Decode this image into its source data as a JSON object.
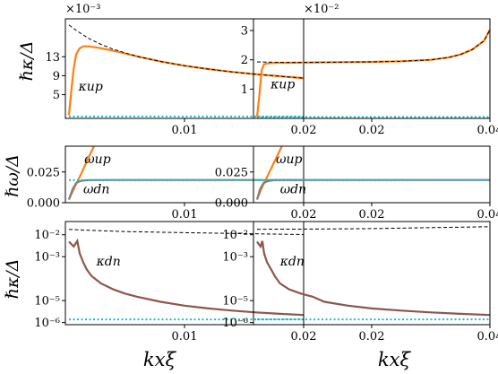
{
  "colors": {
    "orange": "#ff7f0e",
    "brown": "#8c564b",
    "gray": "#7f7f7f",
    "cyan": "#17becf",
    "dash": "#000000"
  },
  "chart_data": [
    {
      "panel": "top-left",
      "type": "line",
      "xlim": [
        0,
        0.02
      ],
      "xticks": [
        "0.01",
        "0.02"
      ],
      "ylim": [
        0,
        0.021
      ],
      "yticks": [
        "5",
        "9",
        "13"
      ],
      "exponent": "×10⁻³",
      "ylabel": "ℏκ/Δ",
      "annotations": [
        "κup"
      ],
      "series": [
        {
          "name": "κup",
          "color": "orange",
          "x": [
            0.0003,
            0.0005,
            0.0007,
            0.0009,
            0.0012,
            0.0015,
            0.002,
            0.0025,
            0.003,
            0.004,
            0.005,
            0.006,
            0.008,
            0.01,
            0.012,
            0.014,
            0.016,
            0.018,
            0.02
          ],
          "y": [
            0.0007,
            0.006,
            0.0105,
            0.0135,
            0.0148,
            0.0152,
            0.0152,
            0.015,
            0.0148,
            0.0143,
            0.0137,
            0.0131,
            0.012,
            0.0111,
            0.0104,
            0.0098,
            0.0093,
            0.0089,
            0.0085
          ]
        },
        {
          "style": "dashed",
          "color": "dash",
          "x": [
            0.0003,
            0.001,
            0.002,
            0.003,
            0.004,
            0.006,
            0.008,
            0.01,
            0.012,
            0.014,
            0.016,
            0.018,
            0.02
          ],
          "y": [
            0.0197,
            0.0184,
            0.0168,
            0.0156,
            0.0146,
            0.0131,
            0.012,
            0.0111,
            0.0104,
            0.0098,
            0.0093,
            0.0089,
            0.0085
          ]
        },
        {
          "style": "dotted",
          "color": "cyan",
          "x": [
            0.0003,
            0.02
          ],
          "y": [
            0.0004,
            0.0004
          ]
        }
      ]
    },
    {
      "panel": "top-right",
      "type": "line",
      "xlim": [
        0,
        0.04
      ],
      "xticks": [
        "0.02",
        "0.04"
      ],
      "ylim": [
        0,
        0.034
      ],
      "yticks": [
        "1",
        "2",
        "3"
      ],
      "exponent": "×10⁻²",
      "annotations": [
        "κup"
      ],
      "series": [
        {
          "name": "κup",
          "color": "orange",
          "x": [
            0.0006,
            0.001,
            0.0014,
            0.0018,
            0.0025,
            0.003,
            0.004,
            0.006,
            0.01,
            0.015,
            0.02,
            0.025,
            0.03,
            0.033,
            0.035,
            0.037,
            0.039,
            0.04
          ],
          "y": [
            0.0005,
            0.008,
            0.0165,
            0.0185,
            0.0188,
            0.0189,
            0.019,
            0.019,
            0.0191,
            0.0192,
            0.0193,
            0.0195,
            0.02,
            0.0208,
            0.0218,
            0.0235,
            0.0265,
            0.0303
          ]
        },
        {
          "style": "dashed",
          "color": "dash",
          "x": [
            0.0006,
            0.005,
            0.01,
            0.015,
            0.02,
            0.025,
            0.03,
            0.033,
            0.035,
            0.037,
            0.039,
            0.04
          ],
          "y": [
            0.0193,
            0.0191,
            0.0191,
            0.0192,
            0.0193,
            0.0195,
            0.02,
            0.0208,
            0.0218,
            0.0235,
            0.0265,
            0.0303
          ]
        },
        {
          "style": "dotted",
          "color": "cyan",
          "x": [
            0.0006,
            0.04
          ],
          "y": [
            0.0005,
            0.0005
          ]
        }
      ]
    },
    {
      "panel": "mid-left",
      "type": "line",
      "xlim": [
        0,
        0.02
      ],
      "xticks": [
        "0.01",
        "0.02"
      ],
      "ylim": [
        0,
        0.046
      ],
      "yticks": [
        "0.000",
        "0.025"
      ],
      "ylabel": "ℏω/Δ",
      "annotations": [
        "ωup",
        "ωdn"
      ],
      "series": [
        {
          "name": "ωup",
          "color": "orange",
          "x": [
            0.0003,
            0.0008,
            0.0014,
            0.0019,
            0.0024
          ],
          "y": [
            0.0028,
            0.013,
            0.025,
            0.036,
            0.046
          ]
        },
        {
          "name": "ωdn",
          "color": "gray",
          "x": [
            0.0003,
            0.0006,
            0.0009,
            0.0012,
            0.0016,
            0.002,
            0.004,
            0.01,
            0.02
          ],
          "y": [
            0.0025,
            0.011,
            0.016,
            0.0175,
            0.0182,
            0.0184,
            0.0185,
            0.0185,
            0.0185
          ]
        },
        {
          "style": "dotted",
          "color": "cyan",
          "x": [
            0.0003,
            0.02
          ],
          "y": [
            0.0185,
            0.0185
          ]
        }
      ]
    },
    {
      "panel": "mid-right",
      "type": "line",
      "xlim": [
        0,
        0.04
      ],
      "xticks": [
        "0.02",
        "0.04"
      ],
      "ylim": [
        0,
        0.046
      ],
      "yticks": [
        "0.000",
        "0.025"
      ],
      "annotations": [
        "ωup",
        "ωdn"
      ],
      "series": [
        {
          "name": "ωup",
          "color": "orange",
          "x": [
            0.0006,
            0.0015,
            0.0027,
            0.0038,
            0.0048
          ],
          "y": [
            0.0028,
            0.013,
            0.025,
            0.036,
            0.046
          ]
        },
        {
          "name": "ωdn",
          "color": "gray",
          "x": [
            0.0006,
            0.0011,
            0.0017,
            0.0024,
            0.0032,
            0.004,
            0.008,
            0.02,
            0.04
          ],
          "y": [
            0.0025,
            0.011,
            0.016,
            0.0175,
            0.0182,
            0.0184,
            0.0185,
            0.0185,
            0.0185
          ]
        },
        {
          "style": "dotted",
          "color": "cyan",
          "x": [
            0.0006,
            0.04
          ],
          "y": [
            0.0185,
            0.0185
          ]
        }
      ]
    },
    {
      "panel": "bottom-left",
      "type": "line",
      "yscale": "log",
      "xlim": [
        0,
        0.02
      ],
      "xticks": [
        "0.01",
        "0.02"
      ],
      "ylim": [
        8e-07,
        0.04
      ],
      "yticks": [
        "10⁻⁶",
        "10⁻⁵",
        "10⁻³",
        "10⁻²"
      ],
      "ylabel": "ℏκ/Δ",
      "xlabel": "kxξ",
      "annotations": [
        "κdn"
      ],
      "series": [
        {
          "name": "κdn",
          "color": "brown",
          "x": [
            0.0003,
            0.0007,
            0.001,
            0.0012,
            0.0015,
            0.0018,
            0.0022,
            0.003,
            0.004,
            0.005,
            0.006,
            0.008,
            0.01,
            0.012,
            0.014,
            0.016,
            0.018,
            0.02
          ],
          "y": [
            0.0048,
            0.0029,
            0.0052,
            0.0014,
            0.00055,
            0.00026,
            0.00013,
            6e-05,
            3.3e-05,
            2.1e-05,
            1.5e-05,
            8.8e-06,
            5.9e-06,
            4.4e-06,
            3.5e-06,
            2.9e-06,
            2.5e-06,
            2.2e-06
          ]
        },
        {
          "style": "dashed",
          "color": "dash",
          "x": [
            0.0003,
            0.002,
            0.005,
            0.01,
            0.015,
            0.02
          ],
          "y": [
            0.0175,
            0.016,
            0.014,
            0.0125,
            0.0112,
            0.0102
          ]
        },
        {
          "style": "dotted",
          "color": "cyan",
          "x": [
            0.0003,
            0.02
          ],
          "y": [
            1.4e-06,
            1.4e-06
          ]
        }
      ]
    },
    {
      "panel": "bottom-right",
      "type": "line",
      "yscale": "log",
      "xlim": [
        0,
        0.04
      ],
      "xticks": [
        "0.02",
        "0.04"
      ],
      "ylim": [
        8e-07,
        0.04
      ],
      "yticks": [
        "10⁻⁶",
        "10⁻⁵",
        "10⁻³",
        "10⁻²"
      ],
      "xlabel": "kxξ",
      "annotations": [
        "κdn"
      ],
      "series": [
        {
          "name": "κdn",
          "color": "brown",
          "x": [
            0.0006,
            0.0012,
            0.0015,
            0.0018,
            0.0023,
            0.003,
            0.0036,
            0.0045,
            0.006,
            0.008,
            0.01,
            0.012,
            0.016,
            0.02,
            0.025,
            0.03,
            0.035,
            0.04
          ],
          "y": [
            0.0048,
            0.0029,
            0.0052,
            0.0014,
            0.00055,
            0.00026,
            0.00013,
            6e-05,
            3.3e-05,
            2.1e-05,
            1.5e-05,
            8.8e-06,
            5.9e-06,
            4.4e-06,
            3.5e-06,
            2.9e-06,
            2.5e-06,
            2.2e-06
          ]
        },
        {
          "style": "dashed",
          "color": "dash",
          "x": [
            0.0006,
            0.01,
            0.02,
            0.03,
            0.04
          ],
          "y": [
            0.0178,
            0.0182,
            0.019,
            0.021,
            0.0232
          ]
        },
        {
          "style": "dotted",
          "color": "cyan",
          "x": [
            0.0006,
            0.04
          ],
          "y": [
            1.4e-06,
            1.4e-06
          ]
        }
      ]
    }
  ]
}
